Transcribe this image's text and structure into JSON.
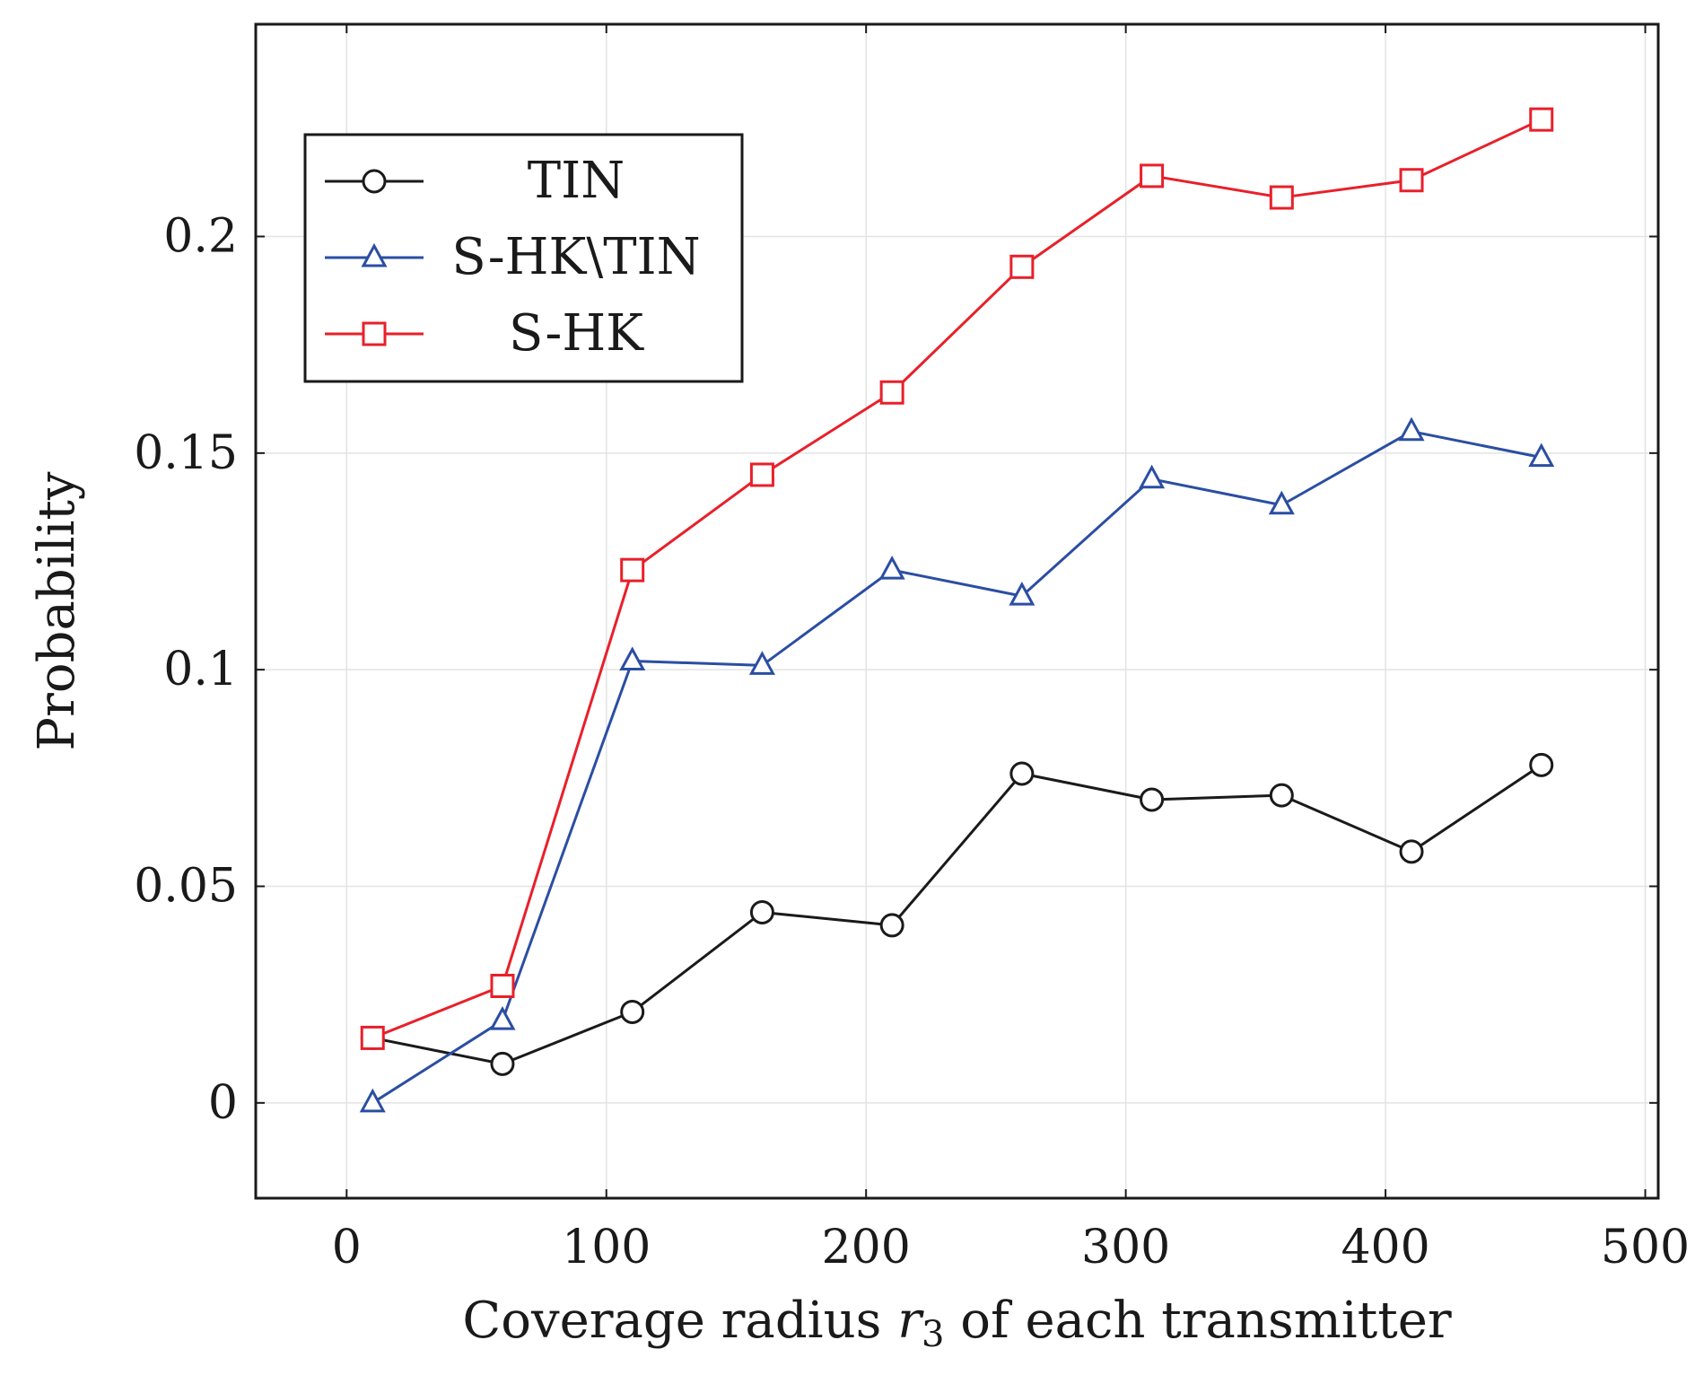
{
  "chart_data": {
    "type": "line",
    "title": "",
    "xlabel": {
      "prefix": "Coverage radius ",
      "var": "r",
      "sub": "3",
      "suffix": " of each transmitter"
    },
    "ylabel": "Probability",
    "xlim": [
      -35,
      505
    ],
    "ylim": [
      -0.022,
      0.249
    ],
    "xticks": [
      0,
      100,
      200,
      300,
      400,
      500
    ],
    "xtick_labels": [
      "0",
      "100",
      "200",
      "300",
      "400",
      "500"
    ],
    "yticks": [
      0,
      0.05,
      0.1,
      0.15,
      0.2
    ],
    "ytick_labels": [
      "0",
      "0.05",
      "0.1",
      "0.15",
      "0.2"
    ],
    "grid": true,
    "legend_position": "top-left",
    "x": [
      10,
      60,
      110,
      160,
      210,
      260,
      310,
      360,
      410,
      460
    ],
    "series": [
      {
        "name": "TIN",
        "color": "#1a1a1a",
        "marker": "circle",
        "values": [
          0.015,
          0.009,
          0.021,
          0.044,
          0.041,
          0.076,
          0.07,
          0.071,
          0.058,
          0.078
        ]
      },
      {
        "name": "S-HK\\TIN",
        "color": "#2b4ea3",
        "marker": "triangle",
        "values": [
          0.0,
          0.019,
          0.102,
          0.101,
          0.123,
          0.117,
          0.144,
          0.138,
          0.155,
          0.149
        ]
      },
      {
        "name": "S-HK",
        "color": "#e8202a",
        "marker": "square",
        "values": [
          0.015,
          0.027,
          0.123,
          0.145,
          0.164,
          0.193,
          0.214,
          0.209,
          0.213,
          0.227
        ]
      }
    ]
  }
}
